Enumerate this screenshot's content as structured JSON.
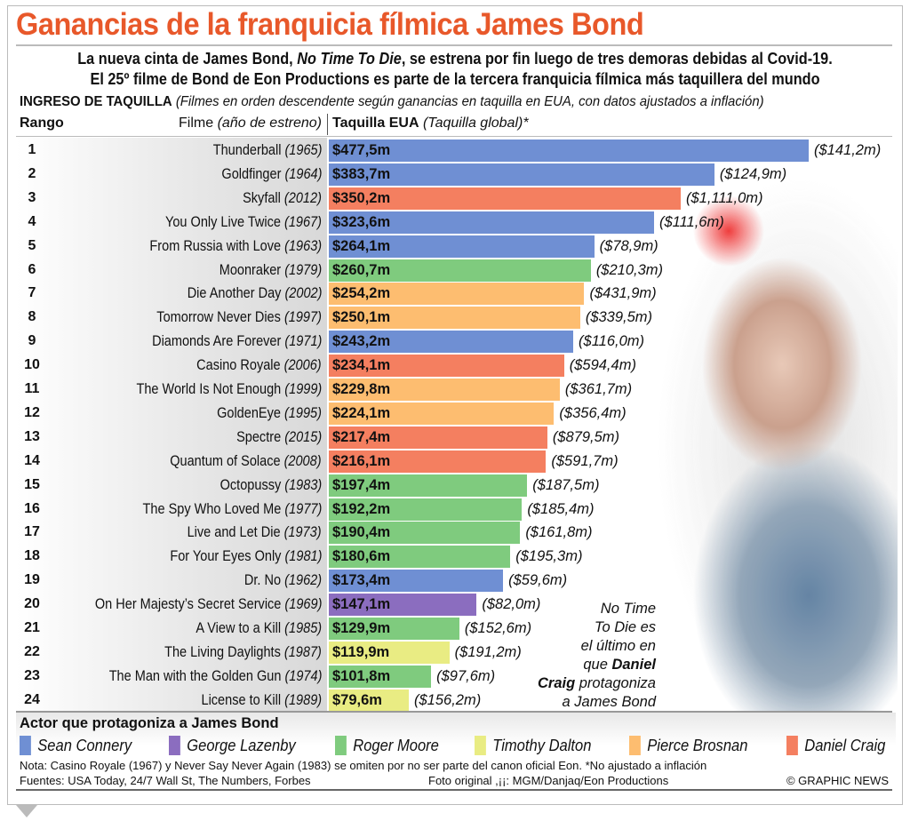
{
  "title": "Ganancias de la franquicia fílmica James Bond",
  "subtitle": {
    "line1_pre": "La nueva cinta de James Bond, ",
    "line1_it": "No Time To Die",
    "line1_post": ", se estrena por fin luego de tres demoras debidas al Covid-19.",
    "line2": "El 25º filme de Bond de Eon Productions es parte de la tercera franquicia fílmica más taquillera del mundo"
  },
  "header": {
    "section": "INGRESO DE TAQUILLA",
    "section_note": "(Filmes en orden descendente según ganancias en taquilla  en EUA, con datos ajustados a inflación)",
    "rank": "Rango",
    "film": "Filme",
    "film_note": "(año de estreno)",
    "box": "Taquilla EUA",
    "box_note": "(Taquilla global)*"
  },
  "annotation": {
    "l1": "No Time",
    "l2": "To Die es",
    "l3": "el último en",
    "l4a": "que ",
    "l4b": "Daniel",
    "l5a": "Craig",
    "l5b": " protagoniza",
    "l6": "a James Bond"
  },
  "colors": {
    "Sean Connery": "#6f8fd3",
    "George Lazenby": "#8b6dbf",
    "Roger Moore": "#7fcb7e",
    "Timothy Dalton": "#e9ec83",
    "Pierce Brosnan": "#fdbd70",
    "Daniel Craig": "#f47f60"
  },
  "chart_data": {
    "type": "bar",
    "orientation": "horizontal",
    "xlim": [
      0,
      477.5
    ],
    "unit": "US$ millones",
    "rows": [
      {
        "rank": "1",
        "film": "Thunderball",
        "year": "(1965)",
        "us": 477.5,
        "us_label": "$477,5m",
        "global": "($141,2m)",
        "actor": "Sean Connery"
      },
      {
        "rank": "2",
        "film": "Goldfinger",
        "year": "(1964)",
        "us": 383.7,
        "us_label": "$383,7m",
        "global": "($124,9m)",
        "actor": "Sean Connery"
      },
      {
        "rank": "3",
        "film": "Skyfall",
        "year": "(2012)",
        "us": 350.2,
        "us_label": "$350,2m",
        "global": "($1,111,0m)",
        "actor": "Daniel Craig"
      },
      {
        "rank": "4",
        "film": "You Only Live Twice",
        "year": "(1967)",
        "us": 323.6,
        "us_label": "$323,6m",
        "global": "($111,6m)",
        "actor": "Sean Connery"
      },
      {
        "rank": "5",
        "film": "From Russia with Love",
        "year": "(1963)",
        "us": 264.1,
        "us_label": "$264,1m",
        "global": "($78,9m)",
        "actor": "Sean Connery"
      },
      {
        "rank": "6",
        "film": "Moonraker",
        "year": "(1979)",
        "us": 260.7,
        "us_label": "$260,7m",
        "global": "($210,3m)",
        "actor": "Roger Moore"
      },
      {
        "rank": "7",
        "film": "Die Another Day",
        "year": "(2002)",
        "us": 254.2,
        "us_label": "$254,2m",
        "global": "($431,9m)",
        "actor": "Pierce Brosnan"
      },
      {
        "rank": "8",
        "film": "Tomorrow Never Dies",
        "year": "(1997)",
        "us": 250.1,
        "us_label": "$250,1m",
        "global": "($339,5m)",
        "actor": "Pierce Brosnan"
      },
      {
        "rank": "9",
        "film": "Diamonds Are Forever",
        "year": "(1971)",
        "us": 243.2,
        "us_label": "$243,2m",
        "global": "($116,0m)",
        "actor": "Sean Connery"
      },
      {
        "rank": "10",
        "film": "Casino Royale",
        "year": "(2006)",
        "us": 234.1,
        "us_label": "$234,1m",
        "global": "($594,4m)",
        "actor": "Daniel Craig"
      },
      {
        "rank": "11",
        "film": "The World Is Not Enough",
        "year": "(1999)",
        "us": 229.8,
        "us_label": "$229,8m",
        "global": "($361,7m)",
        "actor": "Pierce Brosnan"
      },
      {
        "rank": "12",
        "film": "GoldenEye",
        "year": "(1995)",
        "us": 224.1,
        "us_label": "$224,1m",
        "global": "($356,4m)",
        "actor": "Pierce Brosnan"
      },
      {
        "rank": "13",
        "film": "Spectre",
        "year": "(2015)",
        "us": 217.4,
        "us_label": "$217,4m",
        "global": "($879,5m)",
        "actor": "Daniel Craig"
      },
      {
        "rank": "14",
        "film": "Quantum of Solace",
        "year": "(2008)",
        "us": 216.1,
        "us_label": "$216,1m",
        "global": "($591,7m)",
        "actor": "Daniel Craig"
      },
      {
        "rank": "15",
        "film": "Octopussy",
        "year": "(1983)",
        "us": 197.4,
        "us_label": "$197,4m",
        "global": "($187,5m)",
        "actor": "Roger Moore"
      },
      {
        "rank": "16",
        "film": "The Spy Who Loved Me",
        "year": "(1977)",
        "us": 192.2,
        "us_label": "$192,2m",
        "global": "($185,4m)",
        "actor": "Roger Moore"
      },
      {
        "rank": "17",
        "film": "Live and Let Die",
        "year": "(1973)",
        "us": 190.4,
        "us_label": "$190,4m",
        "global": "($161,8m)",
        "actor": "Roger Moore"
      },
      {
        "rank": "18",
        "film": "For Your Eyes Only",
        "year": "(1981)",
        "us": 180.6,
        "us_label": "$180,6m",
        "global": "($195,3m)",
        "actor": "Roger Moore"
      },
      {
        "rank": "19",
        "film": "Dr. No",
        "year": "(1962)",
        "us": 173.4,
        "us_label": "$173,4m",
        "global": "($59,6m)",
        "actor": "Sean Connery"
      },
      {
        "rank": "20",
        "film": "On Her Majesty’s Secret Service",
        "year": "(1969)",
        "us": 147.1,
        "us_label": "$147,1m",
        "global": "($82,0m)",
        "actor": "George Lazenby"
      },
      {
        "rank": "21",
        "film": "A View to a Kill",
        "year": "(1985)",
        "us": 129.9,
        "us_label": "$129,9m",
        "global": "($152,6m)",
        "actor": "Roger Moore"
      },
      {
        "rank": "22",
        "film": "The Living Daylights",
        "year": "(1987)",
        "us": 119.9,
        "us_label": "$119,9m",
        "global": "($191,2m)",
        "actor": "Timothy Dalton"
      },
      {
        "rank": "23",
        "film": "The Man with the Golden Gun",
        "year": "(1974)",
        "us": 101.8,
        "us_label": "$101,8m",
        "global": "($97,6m)",
        "actor": "Roger Moore"
      },
      {
        "rank": "24",
        "film": "License to Kill",
        "year": "(1989)",
        "us": 79.6,
        "us_label": "$79,6m",
        "global": "($156,2m)",
        "actor": "Timothy Dalton"
      }
    ],
    "legend_title": "Actor que protagoniza a James Bond",
    "legend": [
      "Sean Connery",
      "George Lazenby",
      "Roger Moore",
      "Timothy Dalton",
      "Pierce Brosnan",
      "Daniel Craig"
    ]
  },
  "footer": {
    "note": "Nota: Casino Royale (1967) y Never Say Never Again (1983) se omiten por no ser parte del canon oficial Eon. *No ajustado a inflación",
    "sources": "Fuentes: USA Today, 24/7 Wall St, The Numbers, Forbes",
    "photo": "Foto original ,¡¡: MGM/Danjaq/Eon Productions",
    "copyright": "© GRAPHIC NEWS"
  }
}
